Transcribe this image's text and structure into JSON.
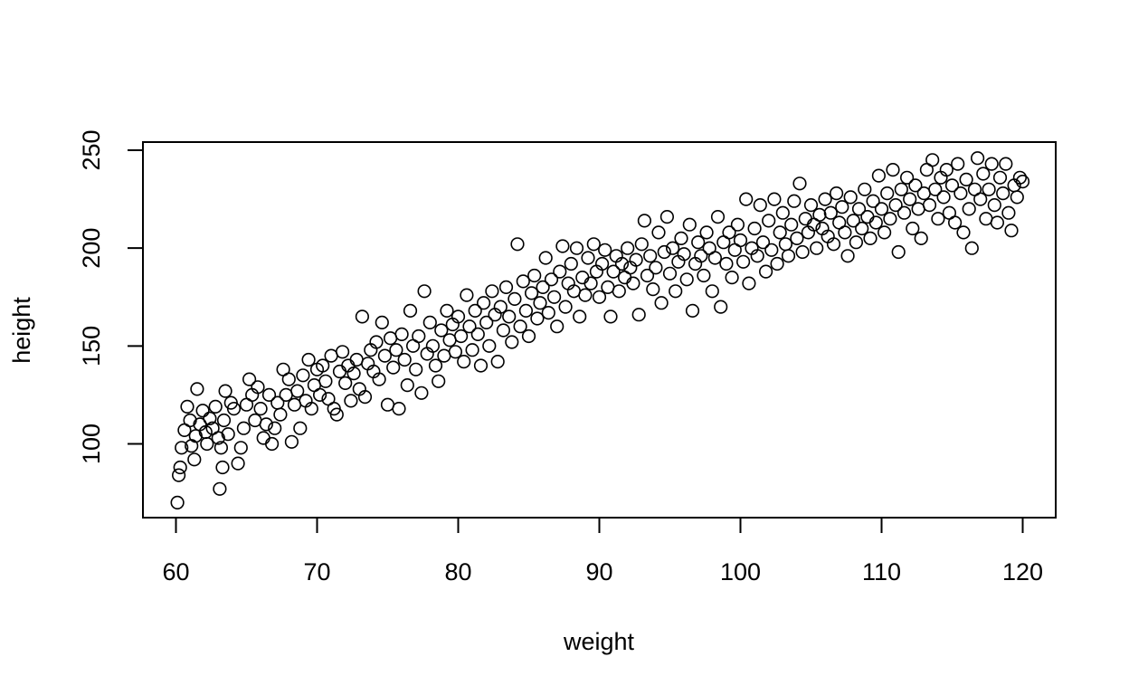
{
  "chart_data": {
    "type": "scatter",
    "xlabel": "weight",
    "ylabel": "height",
    "xlim": [
      58,
      122
    ],
    "ylim": [
      65,
      254
    ],
    "x_ticks": [
      60,
      70,
      80,
      90,
      100,
      110,
      120
    ],
    "y_ticks": [
      100,
      150,
      200,
      250
    ],
    "grid": false,
    "marker": "open-circle",
    "marker_color": "#000000",
    "points": [
      [
        60.1,
        70
      ],
      [
        60.2,
        84
      ],
      [
        60.3,
        88
      ],
      [
        60.4,
        98
      ],
      [
        60.6,
        107
      ],
      [
        60.8,
        119
      ],
      [
        61.0,
        112
      ],
      [
        61.1,
        99
      ],
      [
        61.3,
        92
      ],
      [
        61.4,
        104
      ],
      [
        61.5,
        128
      ],
      [
        61.7,
        110
      ],
      [
        61.9,
        117
      ],
      [
        62.1,
        106
      ],
      [
        62.2,
        100
      ],
      [
        62.4,
        113
      ],
      [
        62.6,
        108
      ],
      [
        62.8,
        119
      ],
      [
        63.0,
        103
      ],
      [
        63.1,
        77
      ],
      [
        63.2,
        98
      ],
      [
        63.3,
        88
      ],
      [
        63.4,
        112
      ],
      [
        63.5,
        127
      ],
      [
        63.7,
        105
      ],
      [
        63.9,
        121
      ],
      [
        64.1,
        118
      ],
      [
        64.4,
        90
      ],
      [
        64.6,
        98
      ],
      [
        64.8,
        108
      ],
      [
        65.0,
        120
      ],
      [
        65.2,
        133
      ],
      [
        65.4,
        125
      ],
      [
        65.6,
        112
      ],
      [
        65.8,
        129
      ],
      [
        66.0,
        118
      ],
      [
        66.2,
        103
      ],
      [
        66.4,
        110
      ],
      [
        66.6,
        125
      ],
      [
        66.8,
        100
      ],
      [
        67.0,
        108
      ],
      [
        67.2,
        121
      ],
      [
        67.4,
        115
      ],
      [
        67.6,
        138
      ],
      [
        67.8,
        125
      ],
      [
        68.0,
        133
      ],
      [
        68.2,
        101
      ],
      [
        68.4,
        120
      ],
      [
        68.6,
        127
      ],
      [
        68.8,
        108
      ],
      [
        69.0,
        135
      ],
      [
        69.2,
        122
      ],
      [
        69.4,
        143
      ],
      [
        69.6,
        118
      ],
      [
        69.8,
        130
      ],
      [
        70.0,
        138
      ],
      [
        70.2,
        125
      ],
      [
        70.4,
        140
      ],
      [
        70.6,
        132
      ],
      [
        70.8,
        123
      ],
      [
        71.0,
        145
      ],
      [
        71.2,
        118
      ],
      [
        71.4,
        115
      ],
      [
        71.6,
        137
      ],
      [
        71.8,
        147
      ],
      [
        72.0,
        131
      ],
      [
        72.2,
        140
      ],
      [
        72.4,
        122
      ],
      [
        72.6,
        136
      ],
      [
        72.8,
        143
      ],
      [
        73.0,
        128
      ],
      [
        73.2,
        165
      ],
      [
        73.4,
        124
      ],
      [
        73.6,
        141
      ],
      [
        73.8,
        148
      ],
      [
        74.0,
        137
      ],
      [
        74.2,
        152
      ],
      [
        74.4,
        133
      ],
      [
        74.6,
        162
      ],
      [
        74.8,
        145
      ],
      [
        75.0,
        120
      ],
      [
        75.2,
        154
      ],
      [
        75.4,
        139
      ],
      [
        75.6,
        148
      ],
      [
        75.8,
        118
      ],
      [
        76.0,
        156
      ],
      [
        76.2,
        143
      ],
      [
        76.4,
        130
      ],
      [
        76.6,
        168
      ],
      [
        76.8,
        150
      ],
      [
        77.0,
        138
      ],
      [
        77.2,
        155
      ],
      [
        77.4,
        126
      ],
      [
        77.6,
        178
      ],
      [
        77.8,
        146
      ],
      [
        78.0,
        162
      ],
      [
        78.2,
        150
      ],
      [
        78.4,
        140
      ],
      [
        78.6,
        132
      ],
      [
        78.8,
        158
      ],
      [
        79.0,
        145
      ],
      [
        79.2,
        168
      ],
      [
        79.4,
        153
      ],
      [
        79.6,
        161
      ],
      [
        79.8,
        147
      ],
      [
        80.0,
        165
      ],
      [
        80.2,
        155
      ],
      [
        80.4,
        142
      ],
      [
        80.6,
        176
      ],
      [
        80.8,
        160
      ],
      [
        81.0,
        148
      ],
      [
        81.2,
        168
      ],
      [
        81.4,
        156
      ],
      [
        81.6,
        140
      ],
      [
        81.8,
        172
      ],
      [
        82.0,
        162
      ],
      [
        82.2,
        150
      ],
      [
        82.4,
        178
      ],
      [
        82.6,
        166
      ],
      [
        82.8,
        142
      ],
      [
        83.0,
        170
      ],
      [
        83.2,
        158
      ],
      [
        83.4,
        180
      ],
      [
        83.6,
        165
      ],
      [
        83.8,
        152
      ],
      [
        84.0,
        174
      ],
      [
        84.2,
        202
      ],
      [
        84.4,
        160
      ],
      [
        84.6,
        183
      ],
      [
        84.8,
        168
      ],
      [
        85.0,
        155
      ],
      [
        85.2,
        177
      ],
      [
        85.4,
        186
      ],
      [
        85.6,
        164
      ],
      [
        85.8,
        172
      ],
      [
        86.0,
        180
      ],
      [
        86.2,
        195
      ],
      [
        86.4,
        167
      ],
      [
        86.6,
        184
      ],
      [
        86.8,
        175
      ],
      [
        87.0,
        160
      ],
      [
        87.2,
        188
      ],
      [
        87.4,
        201
      ],
      [
        87.6,
        170
      ],
      [
        87.8,
        182
      ],
      [
        88.0,
        192
      ],
      [
        88.2,
        178
      ],
      [
        88.4,
        200
      ],
      [
        88.6,
        165
      ],
      [
        88.8,
        185
      ],
      [
        89.0,
        176
      ],
      [
        89.2,
        195
      ],
      [
        89.4,
        182
      ],
      [
        89.6,
        202
      ],
      [
        89.8,
        188
      ],
      [
        90.0,
        175
      ],
      [
        90.2,
        192
      ],
      [
        90.4,
        199
      ],
      [
        90.6,
        180
      ],
      [
        90.8,
        165
      ],
      [
        91.0,
        188
      ],
      [
        91.2,
        196
      ],
      [
        91.4,
        178
      ],
      [
        91.6,
        192
      ],
      [
        91.8,
        185
      ],
      [
        92.0,
        200
      ],
      [
        92.2,
        190
      ],
      [
        92.4,
        182
      ],
      [
        92.6,
        194
      ],
      [
        92.8,
        166
      ],
      [
        93.0,
        202
      ],
      [
        93.2,
        214
      ],
      [
        93.4,
        186
      ],
      [
        93.6,
        196
      ],
      [
        93.8,
        179
      ],
      [
        94.0,
        190
      ],
      [
        94.2,
        208
      ],
      [
        94.4,
        172
      ],
      [
        94.6,
        198
      ],
      [
        94.8,
        216
      ],
      [
        95.0,
        187
      ],
      [
        95.2,
        200
      ],
      [
        95.4,
        178
      ],
      [
        95.6,
        193
      ],
      [
        95.8,
        205
      ],
      [
        96.0,
        197
      ],
      [
        96.2,
        184
      ],
      [
        96.4,
        212
      ],
      [
        96.6,
        168
      ],
      [
        96.8,
        192
      ],
      [
        97.0,
        203
      ],
      [
        97.2,
        196
      ],
      [
        97.4,
        186
      ],
      [
        97.6,
        208
      ],
      [
        97.8,
        200
      ],
      [
        98.0,
        178
      ],
      [
        98.2,
        195
      ],
      [
        98.4,
        216
      ],
      [
        98.6,
        170
      ],
      [
        98.8,
        203
      ],
      [
        99.0,
        192
      ],
      [
        99.2,
        208
      ],
      [
        99.4,
        185
      ],
      [
        99.6,
        199
      ],
      [
        99.8,
        212
      ],
      [
        100.0,
        204
      ],
      [
        100.2,
        193
      ],
      [
        100.4,
        225
      ],
      [
        100.6,
        182
      ],
      [
        100.8,
        200
      ],
      [
        101.0,
        210
      ],
      [
        101.2,
        196
      ],
      [
        101.4,
        222
      ],
      [
        101.6,
        203
      ],
      [
        101.8,
        188
      ],
      [
        102.0,
        214
      ],
      [
        102.2,
        199
      ],
      [
        102.4,
        225
      ],
      [
        102.6,
        192
      ],
      [
        102.8,
        208
      ],
      [
        103.0,
        218
      ],
      [
        103.2,
        202
      ],
      [
        103.4,
        196
      ],
      [
        103.6,
        212
      ],
      [
        103.8,
        224
      ],
      [
        104.0,
        205
      ],
      [
        104.2,
        233
      ],
      [
        104.4,
        198
      ],
      [
        104.6,
        215
      ],
      [
        104.8,
        208
      ],
      [
        105.0,
        222
      ],
      [
        105.2,
        212
      ],
      [
        105.4,
        200
      ],
      [
        105.6,
        217
      ],
      [
        105.8,
        210
      ],
      [
        106.0,
        225
      ],
      [
        106.2,
        206
      ],
      [
        106.4,
        218
      ],
      [
        106.6,
        202
      ],
      [
        106.8,
        228
      ],
      [
        107.0,
        213
      ],
      [
        107.2,
        221
      ],
      [
        107.4,
        208
      ],
      [
        107.6,
        196
      ],
      [
        107.8,
        226
      ],
      [
        108.0,
        214
      ],
      [
        108.2,
        203
      ],
      [
        108.4,
        220
      ],
      [
        108.6,
        210
      ],
      [
        108.8,
        230
      ],
      [
        109.0,
        216
      ],
      [
        109.2,
        205
      ],
      [
        109.4,
        224
      ],
      [
        109.6,
        213
      ],
      [
        109.8,
        237
      ],
      [
        110.0,
        220
      ],
      [
        110.2,
        208
      ],
      [
        110.4,
        228
      ],
      [
        110.6,
        215
      ],
      [
        110.8,
        240
      ],
      [
        111.0,
        222
      ],
      [
        111.2,
        198
      ],
      [
        111.4,
        230
      ],
      [
        111.6,
        218
      ],
      [
        111.8,
        236
      ],
      [
        112.0,
        225
      ],
      [
        112.2,
        210
      ],
      [
        112.4,
        232
      ],
      [
        112.6,
        220
      ],
      [
        112.8,
        205
      ],
      [
        113.0,
        228
      ],
      [
        113.2,
        240
      ],
      [
        113.4,
        222
      ],
      [
        113.6,
        245
      ],
      [
        113.8,
        230
      ],
      [
        114.0,
        215
      ],
      [
        114.2,
        236
      ],
      [
        114.4,
        226
      ],
      [
        114.6,
        240
      ],
      [
        114.8,
        218
      ],
      [
        115.0,
        232
      ],
      [
        115.2,
        213
      ],
      [
        115.4,
        243
      ],
      [
        115.6,
        228
      ],
      [
        115.8,
        208
      ],
      [
        116.0,
        235
      ],
      [
        116.2,
        220
      ],
      [
        116.4,
        200
      ],
      [
        116.6,
        230
      ],
      [
        116.8,
        246
      ],
      [
        117.0,
        225
      ],
      [
        117.2,
        238
      ],
      [
        117.4,
        215
      ],
      [
        117.6,
        230
      ],
      [
        117.8,
        243
      ],
      [
        118.0,
        222
      ],
      [
        118.2,
        213
      ],
      [
        118.4,
        236
      ],
      [
        118.6,
        228
      ],
      [
        118.8,
        243
      ],
      [
        119.0,
        218
      ],
      [
        119.2,
        209
      ],
      [
        119.4,
        232
      ],
      [
        119.6,
        226
      ],
      [
        119.8,
        236
      ],
      [
        120.0,
        234
      ]
    ]
  }
}
